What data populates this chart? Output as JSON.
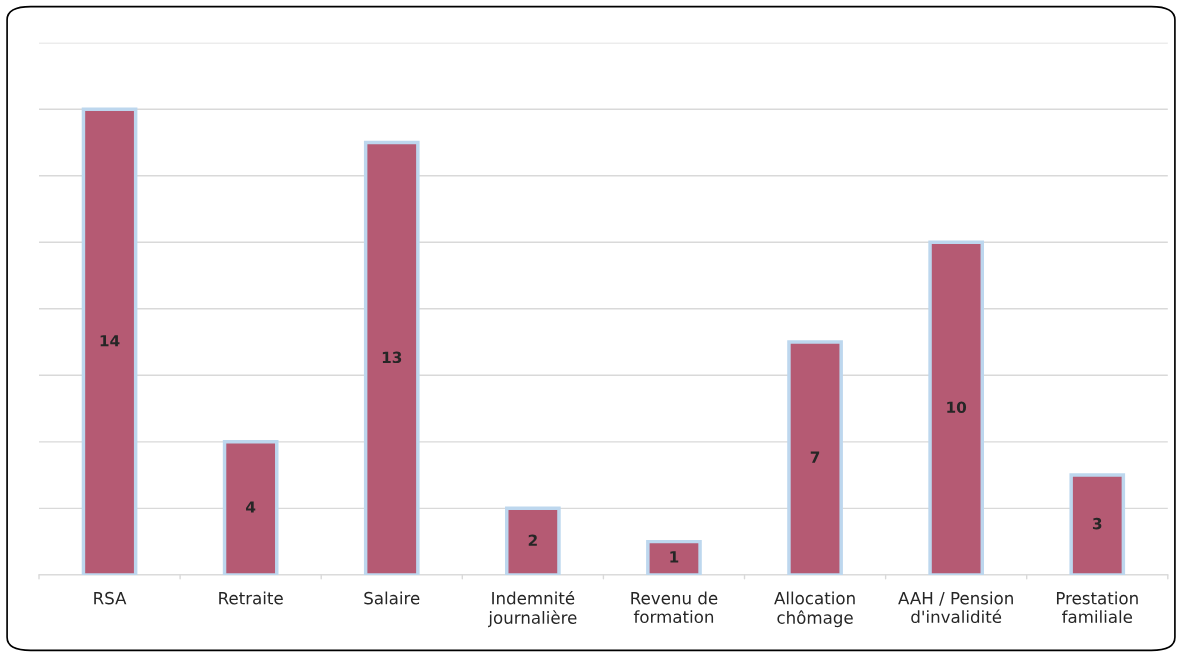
{
  "chart_data": {
    "type": "bar",
    "categories": [
      "RSA",
      "Retraite",
      "Salaire",
      "Indemnité journalière",
      "Revenu de formation",
      "Allocation chômage",
      "AAH / Pension d'invalidité",
      "Prestation familiale"
    ],
    "values": [
      14,
      4,
      13,
      2,
      1,
      7,
      10,
      3
    ],
    "color": "#b55a73",
    "ylim": [
      0,
      16
    ],
    "yticks": [
      {
        "value": 0,
        "label": null
      },
      {
        "value": 2,
        "label": null
      },
      {
        "value": 4,
        "label": null
      },
      {
        "value": 6,
        "label": null
      },
      {
        "value": 8,
        "label": null
      },
      {
        "value": 10,
        "label": null
      },
      {
        "value": 12,
        "label": null
      },
      {
        "value": 14,
        "label": null
      },
      {
        "value": 16,
        "label": null
      }
    ],
    "grid": "y",
    "tick_labels": "x",
    "data_labels": true,
    "legend": false
  }
}
